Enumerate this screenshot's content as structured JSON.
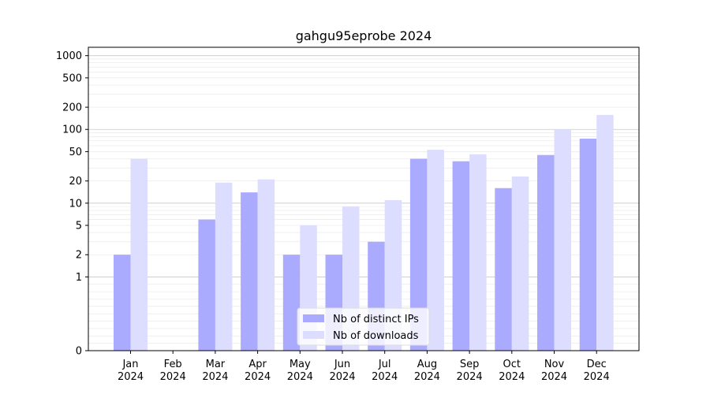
{
  "chart_data": {
    "type": "bar",
    "title": "gahgu95eprobe 2024",
    "xlabel": "",
    "ylabel": "",
    "y_scale": "symlog",
    "ylim": [
      0,
      1300
    ],
    "y_ticks": [
      0,
      1,
      2,
      5,
      10,
      20,
      50,
      100,
      200,
      500,
      1000
    ],
    "y_tick_labels": [
      "0",
      "1",
      "2",
      "5",
      "10",
      "20",
      "50",
      "100",
      "200",
      "500",
      "1000"
    ],
    "grid": true,
    "legend_position": "bottom-center",
    "categories": [
      [
        "Jan",
        "2024"
      ],
      [
        "Feb",
        "2024"
      ],
      [
        "Mar",
        "2024"
      ],
      [
        "Apr",
        "2024"
      ],
      [
        "May",
        "2024"
      ],
      [
        "Jun",
        "2024"
      ],
      [
        "Jul",
        "2024"
      ],
      [
        "Aug",
        "2024"
      ],
      [
        "Sep",
        "2024"
      ],
      [
        "Oct",
        "2024"
      ],
      [
        "Nov",
        "2024"
      ],
      [
        "Dec",
        "2024"
      ]
    ],
    "series": [
      {
        "name": "Nb of distinct IPs",
        "color": "#aaaaff",
        "values": [
          2,
          0,
          6,
          14,
          2,
          2,
          3,
          40,
          37,
          16,
          45,
          75
        ]
      },
      {
        "name": "Nb of downloads",
        "color": "#ddddff",
        "values": [
          40,
          0,
          19,
          21,
          5,
          9,
          11,
          53,
          46,
          23,
          100,
          157
        ]
      }
    ]
  }
}
